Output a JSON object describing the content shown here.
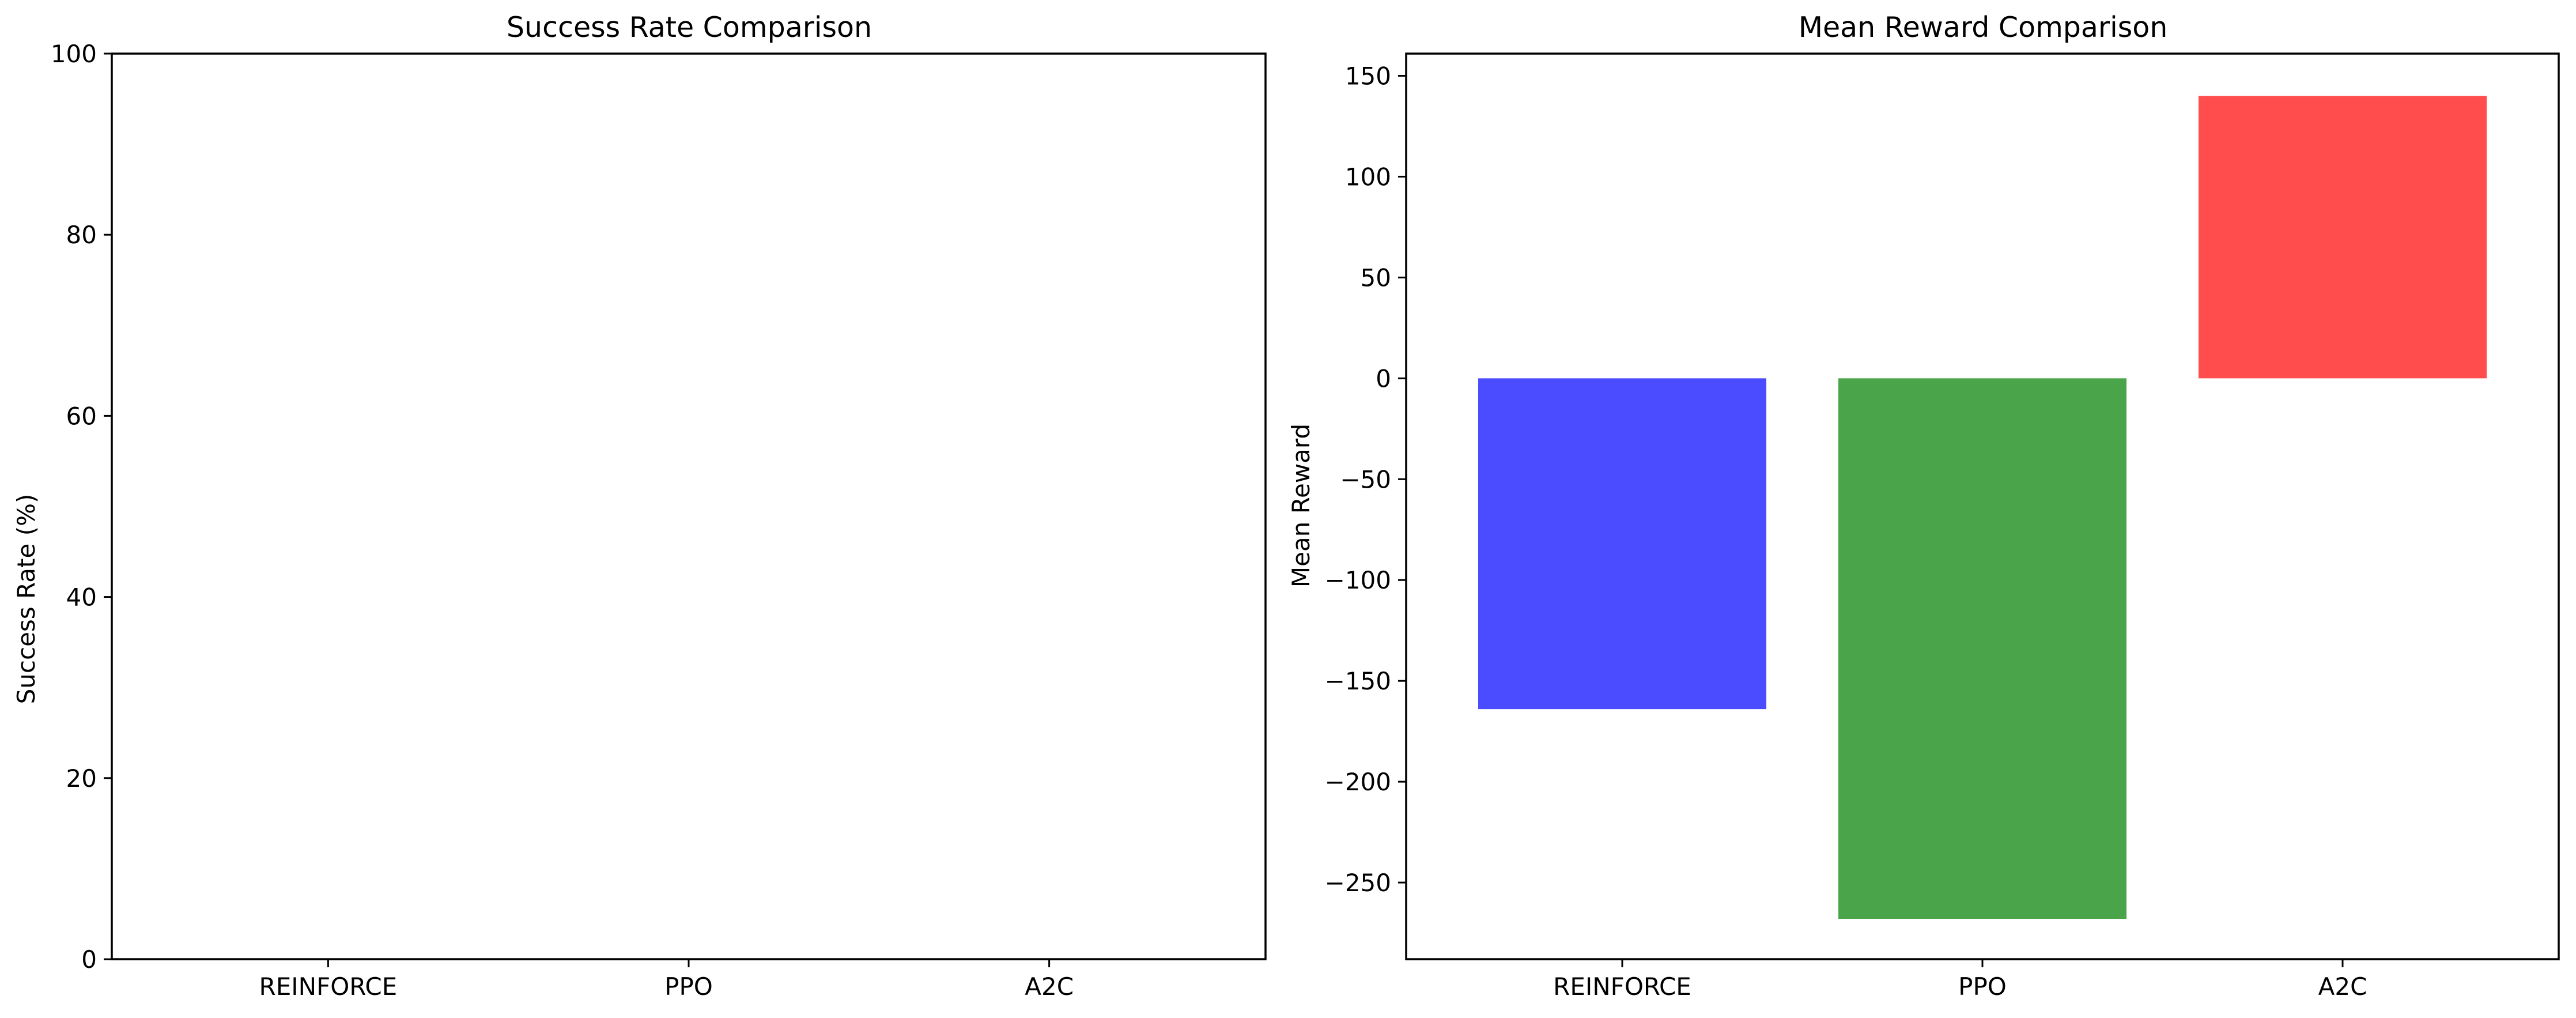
{
  "chart_data": [
    {
      "type": "bar",
      "title": "Success Rate Comparison",
      "xlabel": "",
      "ylabel": "Success Rate (%)",
      "categories": [
        "REINFORCE",
        "PPO",
        "A2C"
      ],
      "values": [
        0,
        0,
        0
      ],
      "ylim": [
        0,
        100
      ],
      "yticks": [
        0,
        20,
        40,
        60,
        80,
        100
      ],
      "colors": [
        "#4b4bff",
        "#4aa54a",
        "#ff4d4d"
      ],
      "grid": false
    },
    {
      "type": "bar",
      "title": "Mean Reward Comparison",
      "xlabel": "",
      "ylabel": "Mean Reward",
      "categories": [
        "REINFORCE",
        "PPO",
        "A2C"
      ],
      "values": [
        -164,
        -268,
        140
      ],
      "ylim": [
        -288,
        161
      ],
      "yticks": [
        -250,
        -200,
        -150,
        -100,
        -50,
        0,
        50,
        100,
        150
      ],
      "colors": [
        "#4b4bff",
        "#4aa54a",
        "#ff4d4d"
      ],
      "grid": false
    }
  ]
}
